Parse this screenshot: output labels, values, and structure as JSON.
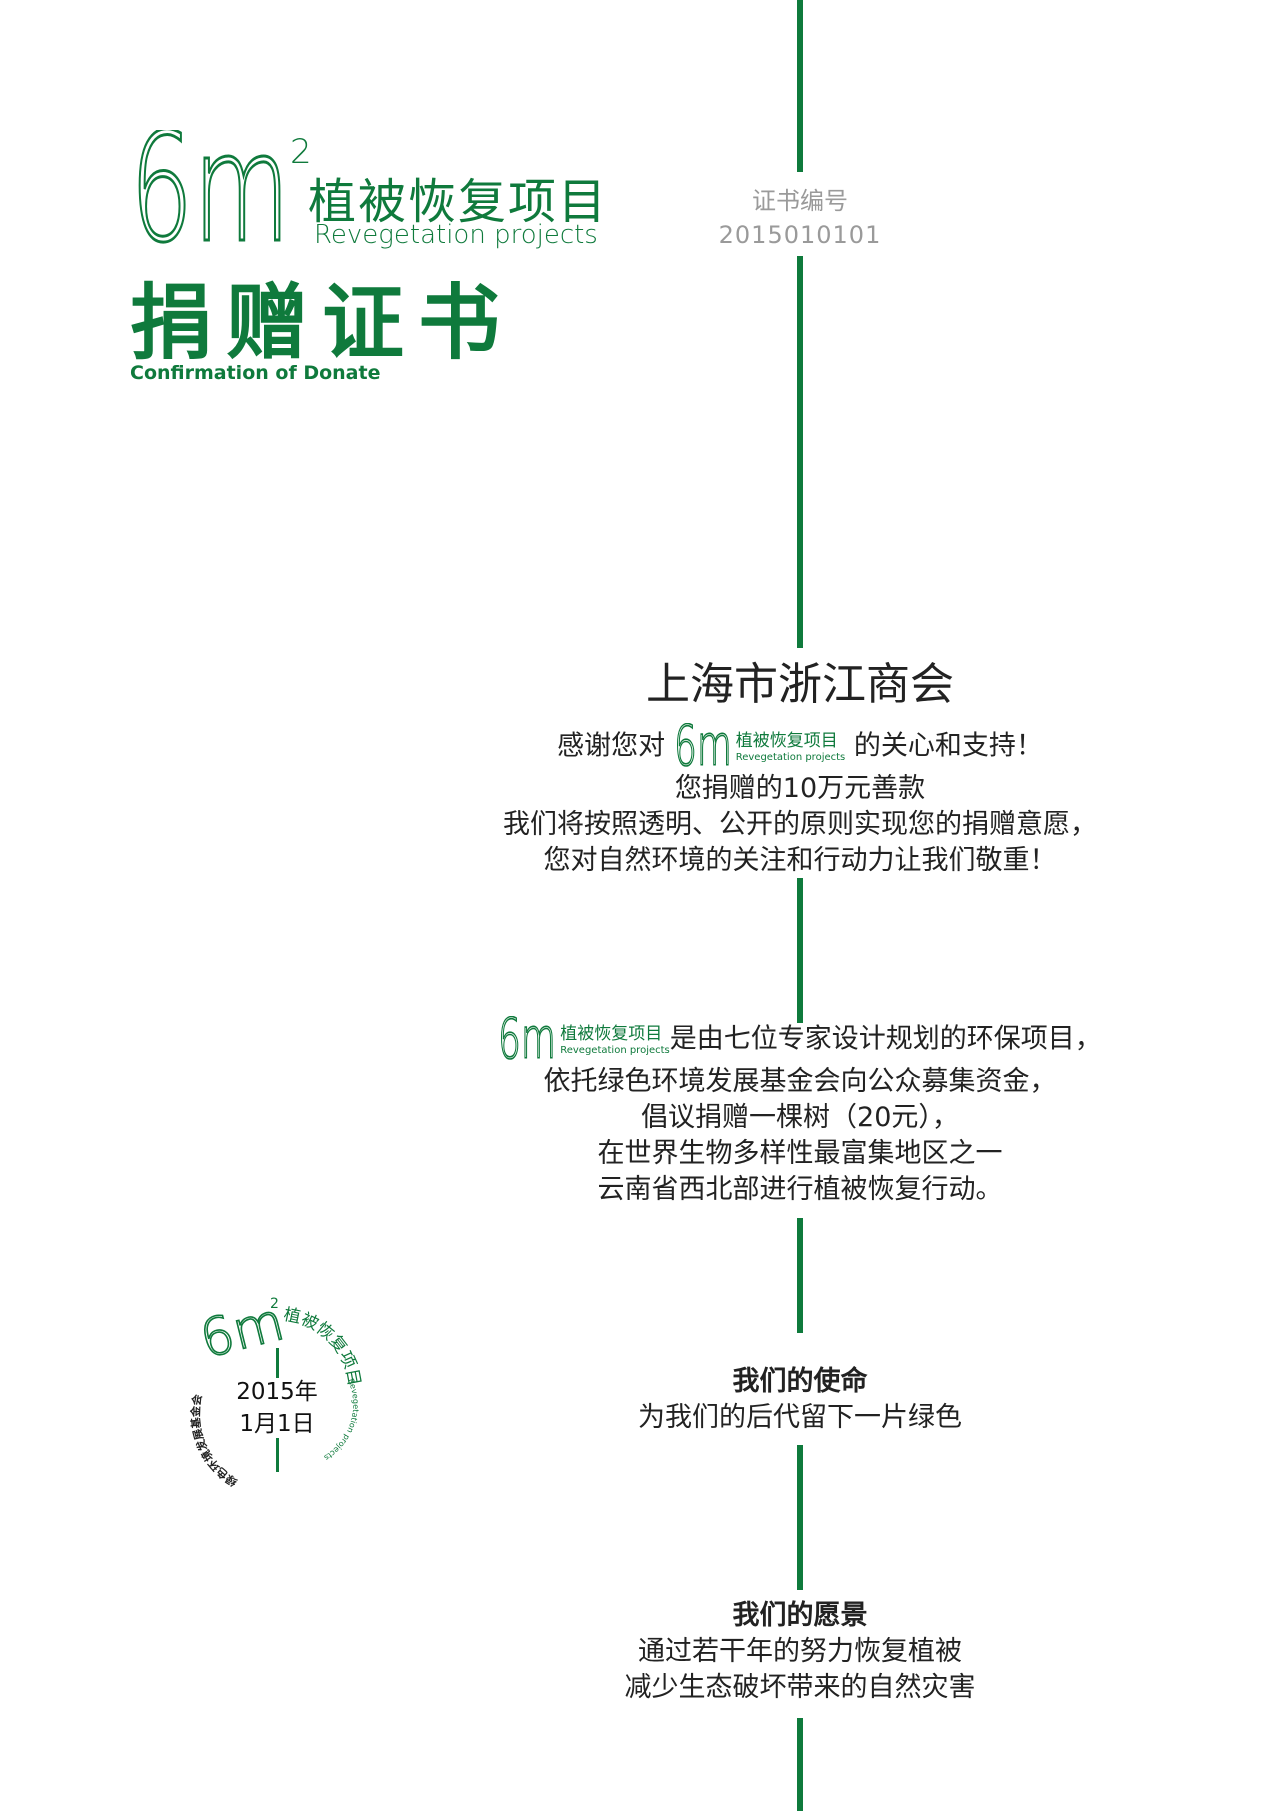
{
  "header": {
    "logo_main": "6m",
    "logo_sup": "2",
    "project_cn": "植被恢复项目",
    "project_en": "Revegetation projects",
    "certificate_cn": "捐赠证书",
    "certificate_en": "Confirmation of Donate"
  },
  "certificate_number": {
    "label": "证书编号",
    "value": "2015010101"
  },
  "thanks": {
    "org": "上海市浙江商会",
    "line1_pre": "感谢您对",
    "line1_post": "的关心和支持！",
    "line2": "您捐赠的10万元善款",
    "line3": "我们将按照透明、公开的原则实现您的捐赠意愿，",
    "line4": "您对自然环境的关注和行动力让我们敬重！"
  },
  "about": {
    "line1_post": "是由七位专家设计规划的环保项目，",
    "line2": "依托绿色环境发展基金会向公众募集资金，",
    "line3": "倡议捐赠一棵树（20元），",
    "line4": "在世界生物多样性最富集地区之一",
    "line5": "云南省西北部进行植被恢复行动。"
  },
  "mission": {
    "title": "我们的使命",
    "text": "为我们的后代留下一片绿色"
  },
  "vision": {
    "title": "我们的愿景",
    "line1": "通过若干年的努力恢复植被",
    "line2": "减少生态破坏带来的自然灾害"
  },
  "stamp": {
    "logo": "6m",
    "sup": "2",
    "arc_right": "植被恢复项目",
    "arc_right_en": "Revegetation projects",
    "arc_left": "绿色环境发展基金会",
    "date_line1": "2015年",
    "date_line2": "1月1日"
  },
  "colors": {
    "brand_green": "#0f7a3c",
    "number_gray": "#9a9a9a"
  }
}
